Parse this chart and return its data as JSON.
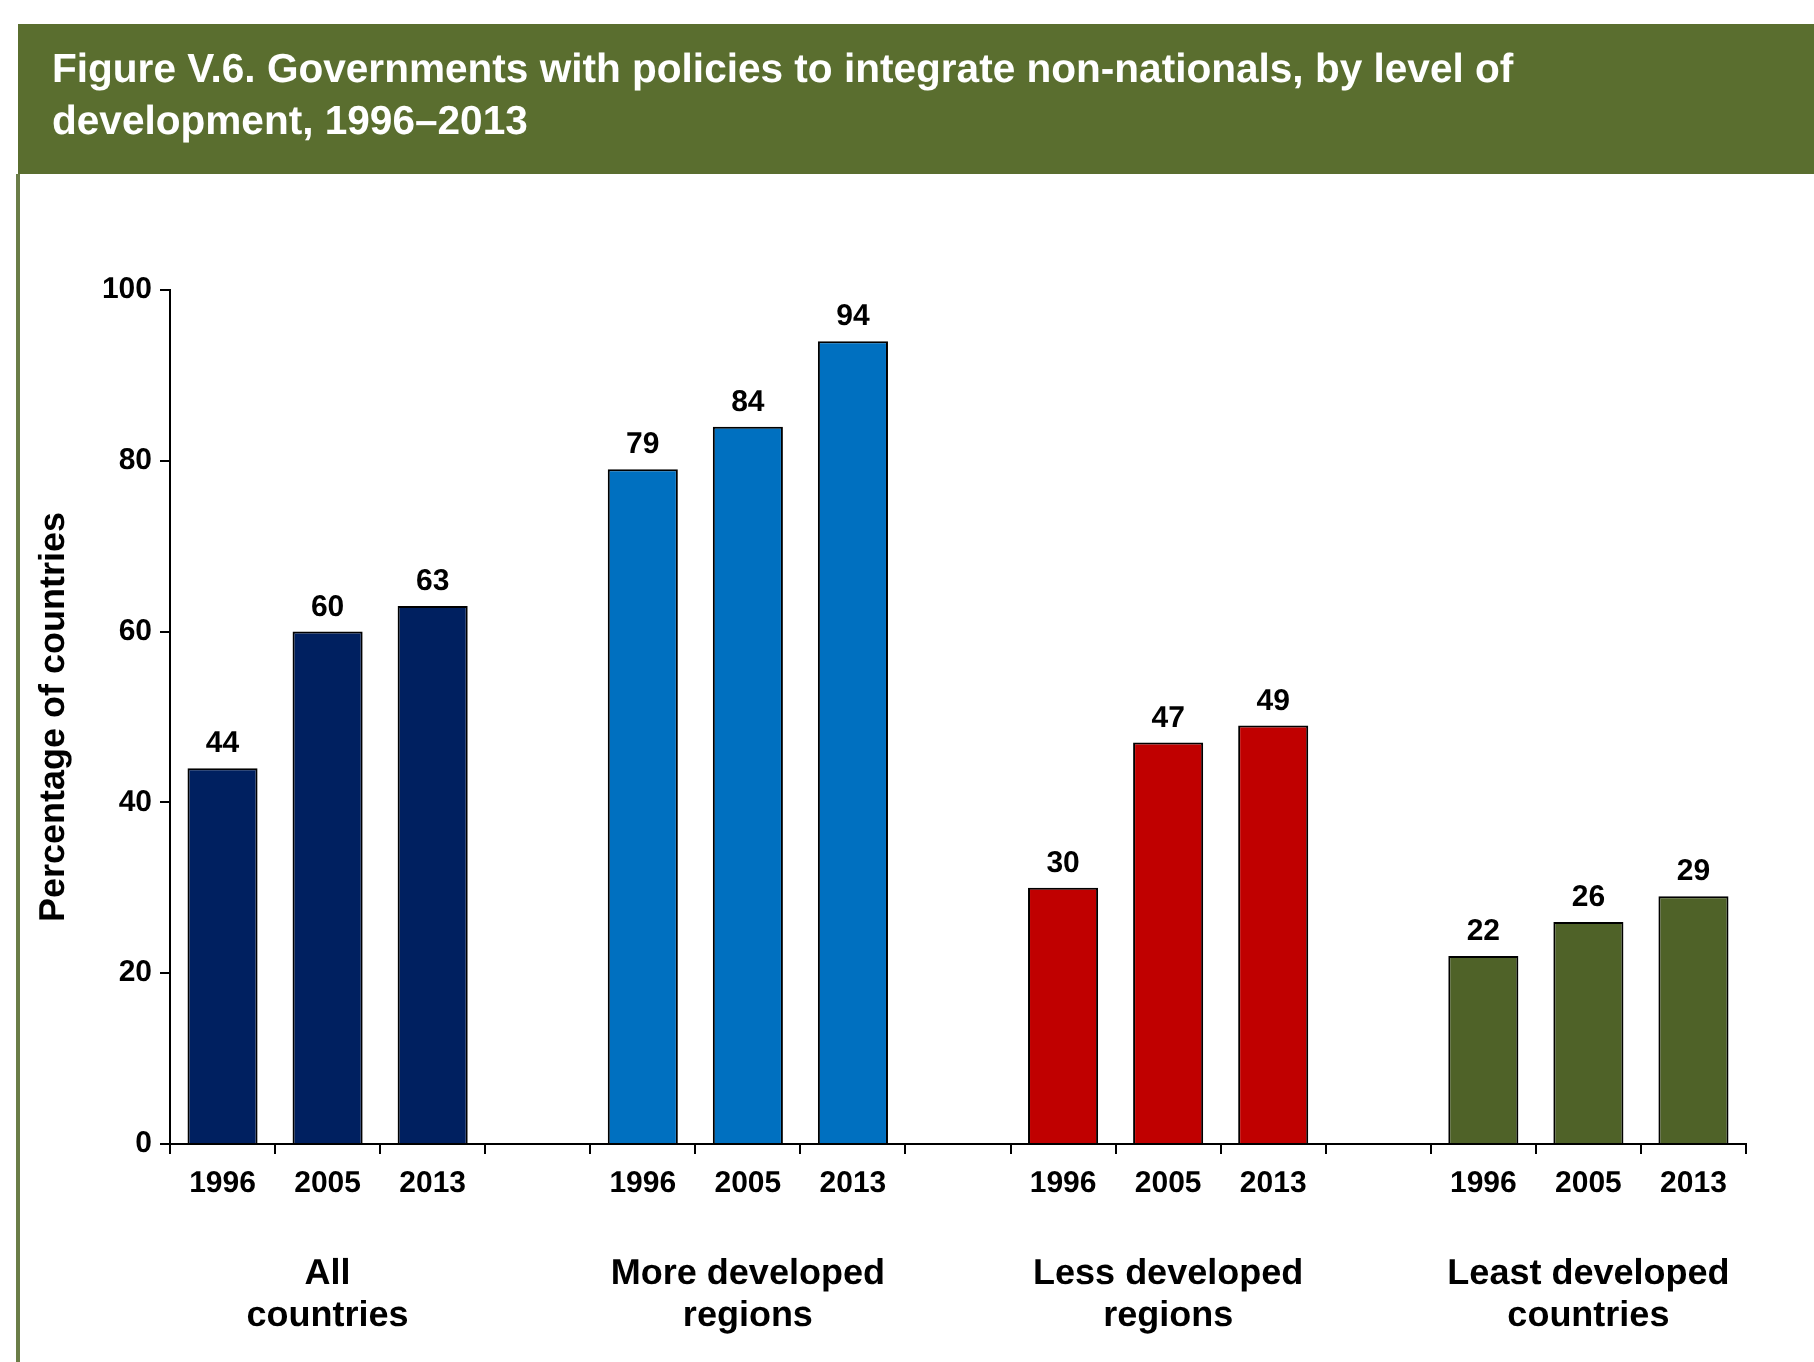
{
  "chart_data": {
    "type": "bar",
    "title": "Figure V.6. Governments with policies to integrate non-nationals, by level of development, 1996–2013",
    "ylabel": "Percentage of countries",
    "categories": [
      "1996",
      "2005",
      "2013",
      null,
      "1996",
      "2005",
      "2013",
      null,
      "1996",
      "2005",
      "2013",
      null,
      "1996",
      "2005",
      "2013"
    ],
    "values": [
      44,
      60,
      63,
      null,
      79,
      84,
      94,
      null,
      30,
      47,
      49,
      null,
      22,
      26,
      29
    ],
    "colors": [
      "#002060",
      "#002060",
      "#002060",
      null,
      "#0070c0",
      "#0070c0",
      "#0070c0",
      null,
      "#c00000",
      "#c00000",
      "#c00000",
      null,
      "#4f6228",
      "#4f6228",
      "#4f6228"
    ],
    "annotations": [
      "All countries",
      "More developed regions",
      "Less developed regions",
      "Least developed countries"
    ],
    "ylim": [
      0,
      100
    ],
    "yticks": [
      0,
      20,
      40,
      60,
      80,
      100
    ],
    "data_labels": true
  }
}
